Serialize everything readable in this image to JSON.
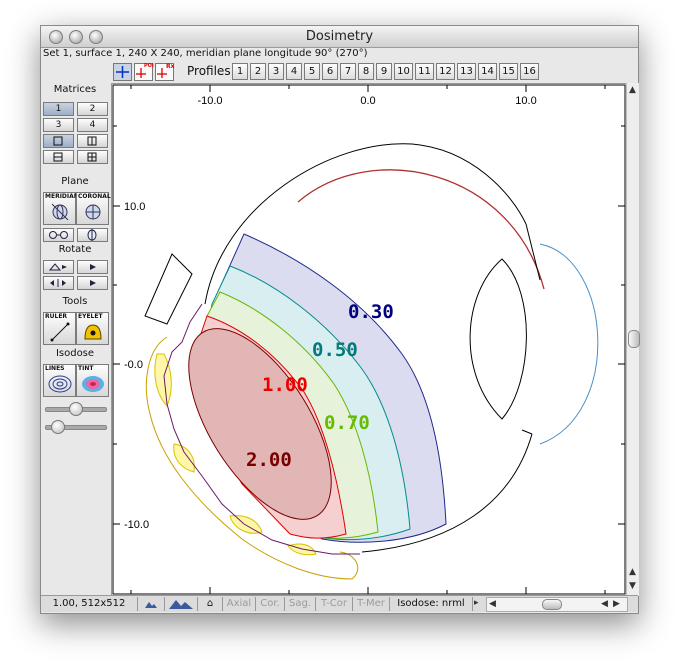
{
  "window": {
    "title": "Dosimetry"
  },
  "status_line": "Set 1, surface 1, 240 X 240, meridian plane longitude 90° (270°)",
  "toolbar": {
    "profiles_label": "Profiles:",
    "profile_buttons": [
      "1",
      "2",
      "3",
      "4",
      "5",
      "6",
      "7",
      "8",
      "9",
      "10",
      "11",
      "12",
      "13",
      "14",
      "15",
      "16"
    ],
    "tool_icons": [
      "crosshair-icon",
      "poi-icon",
      "rx-icon"
    ],
    "poi_caption": "POI",
    "rx_caption": "Rx"
  },
  "sidebar": {
    "matrices_label": "Matrices",
    "matrix_buttons": [
      "1",
      "2",
      "3",
      "4"
    ],
    "plane_label": "Plane",
    "meridian_label": "MERIDIAN",
    "coronal_label": "CORONAL",
    "rotate_label": "Rotate",
    "tools_label": "Tools",
    "ruler_label": "RULER",
    "eyelet_label": "EYELET",
    "isodose_label": "Isodose",
    "lines_label": "LINES",
    "tint_label": "TINT",
    "slider_values": [
      0.5,
      0.2
    ]
  },
  "axes": {
    "x_ticks": [
      "-10.0",
      "0.0",
      "10.0"
    ],
    "y_ticks": [
      "10.0",
      "-0.0",
      "-10.0"
    ]
  },
  "isodose_labels": [
    {
      "text": "0.30",
      "color": "#000080"
    },
    {
      "text": "0.50",
      "color": "#007a7a"
    },
    {
      "text": "0.70",
      "color": "#66bb00"
    },
    {
      "text": "1.00",
      "color": "#ee0000"
    },
    {
      "text": "2.00",
      "color": "#7a0000"
    }
  ],
  "bottom_bar": {
    "zoom": "1.00, 512x512",
    "home_glyph": "⌂",
    "views": [
      "Axial",
      "Cor.",
      "Sag.",
      "T-Cor",
      "T-Mer"
    ],
    "isodose_status": "Isodose: nrml"
  }
}
